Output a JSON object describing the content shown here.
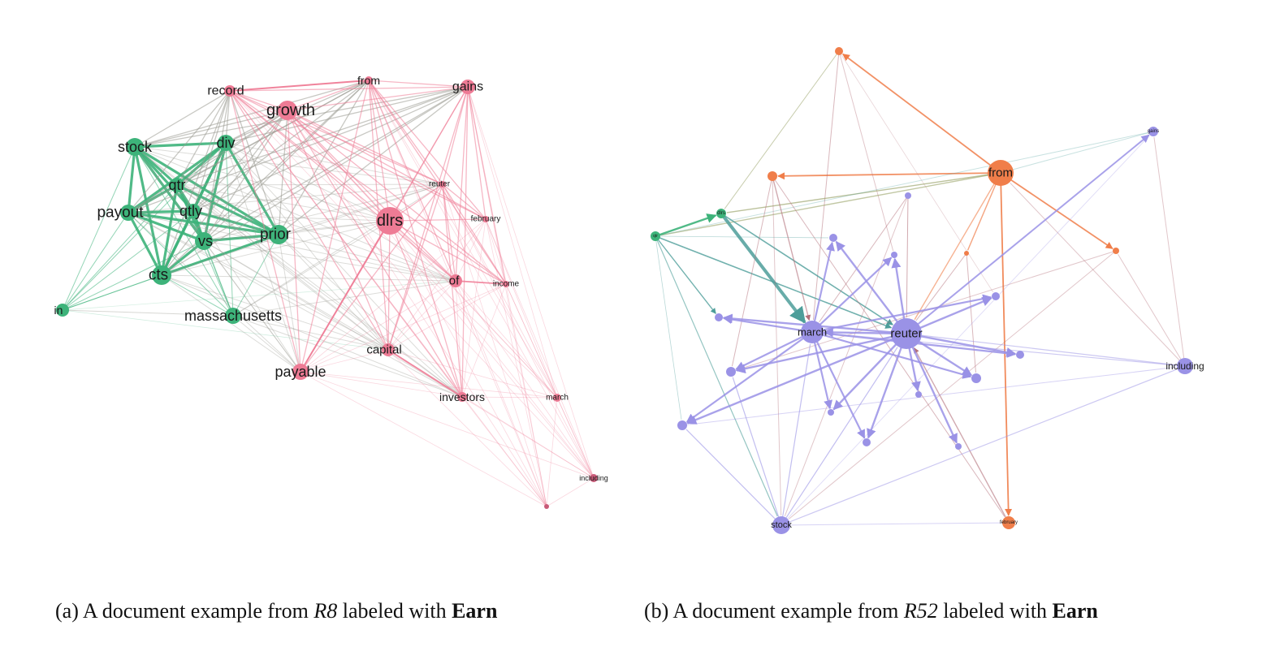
{
  "colors": {
    "green": "#3db37a",
    "pink": "#ee7b95",
    "gray_edge": "#9a9a92",
    "purple": "#9a92e6",
    "orange": "#f07e4a",
    "teal": "#4d9e9a",
    "maroon": "#b3707a",
    "olive": "#8f9a5a"
  },
  "panel_a": {
    "caption": {
      "prefix": "(a) A document example from ",
      "dataset": "R8",
      "middle": " labeled with ",
      "label": "Earn"
    },
    "nodes": [
      {
        "id": "record",
        "label": "record",
        "group": "pink"
      },
      {
        "id": "from",
        "label": "from",
        "group": "pink"
      },
      {
        "id": "gains",
        "label": "gains",
        "group": "pink"
      },
      {
        "id": "growth",
        "label": "growth",
        "group": "pink"
      },
      {
        "id": "stock",
        "label": "stock",
        "group": "green"
      },
      {
        "id": "div",
        "label": "div",
        "group": "green"
      },
      {
        "id": "qtr",
        "label": "qtr",
        "group": "green"
      },
      {
        "id": "reuter",
        "label": "reuter",
        "group": "pink"
      },
      {
        "id": "payout",
        "label": "payout",
        "group": "green"
      },
      {
        "id": "qtly",
        "label": "qtly",
        "group": "green"
      },
      {
        "id": "dlrs",
        "label": "dlrs",
        "group": "pink"
      },
      {
        "id": "february",
        "label": "february",
        "group": "pink"
      },
      {
        "id": "vs",
        "label": "vs",
        "group": "green"
      },
      {
        "id": "prior",
        "label": "prior",
        "group": "green"
      },
      {
        "id": "cts",
        "label": "cts",
        "group": "green"
      },
      {
        "id": "of",
        "label": "of",
        "group": "pink"
      },
      {
        "id": "income",
        "label": "income",
        "group": "pink"
      },
      {
        "id": "in",
        "label": "in",
        "group": "green"
      },
      {
        "id": "massachusetts",
        "label": "massachusetts",
        "group": "green"
      },
      {
        "id": "capital",
        "label": "capital",
        "group": "pink"
      },
      {
        "id": "payable",
        "label": "payable",
        "group": "pink"
      },
      {
        "id": "investors",
        "label": "investors",
        "group": "pink"
      },
      {
        "id": "march",
        "label": "march",
        "group": "pink"
      },
      {
        "id": "including",
        "label": "including",
        "group": "pink"
      },
      {
        "id": "tiny",
        "label": "",
        "group": "pink"
      }
    ]
  },
  "panel_b": {
    "caption": {
      "prefix": "(b) A document example from ",
      "dataset": "R52",
      "middle": " labeled with ",
      "label": "Earn"
    },
    "nodes": [
      {
        "id": "cts",
        "label": "",
        "group": "orange"
      },
      {
        "id": "gains",
        "label": "gains",
        "group": "purple"
      },
      {
        "id": "from",
        "label": "from",
        "group": "orange"
      },
      {
        "id": "of",
        "label": "",
        "group": "orange"
      },
      {
        "id": "mass",
        "label": "",
        "group": "purple"
      },
      {
        "id": "dlrs",
        "label": "dlrs",
        "group": "green"
      },
      {
        "id": "qtr",
        "label": "qtr",
        "group": "green"
      },
      {
        "id": "n1",
        "label": "",
        "group": "purple"
      },
      {
        "id": "n2",
        "label": "",
        "group": "purple"
      },
      {
        "id": "n3",
        "label": "",
        "group": "orange"
      },
      {
        "id": "n4",
        "label": "",
        "group": "orange"
      },
      {
        "id": "n5",
        "label": "",
        "group": "purple"
      },
      {
        "id": "n6",
        "label": "",
        "group": "purple"
      },
      {
        "id": "march",
        "label": "march",
        "group": "purple"
      },
      {
        "id": "reuter",
        "label": "reuter",
        "group": "purple"
      },
      {
        "id": "n7",
        "label": "",
        "group": "purple"
      },
      {
        "id": "including",
        "label": "including",
        "group": "purple"
      },
      {
        "id": "n8",
        "label": "",
        "group": "purple"
      },
      {
        "id": "n9",
        "label": "",
        "group": "purple"
      },
      {
        "id": "n10",
        "label": "",
        "group": "purple"
      },
      {
        "id": "n11",
        "label": "",
        "group": "purple"
      },
      {
        "id": "n12",
        "label": "",
        "group": "purple"
      },
      {
        "id": "n13",
        "label": "",
        "group": "purple"
      },
      {
        "id": "n14",
        "label": "",
        "group": "purple"
      },
      {
        "id": "stock",
        "label": "stock",
        "group": "purple"
      },
      {
        "id": "february",
        "label": "february",
        "group": "orange"
      }
    ]
  }
}
